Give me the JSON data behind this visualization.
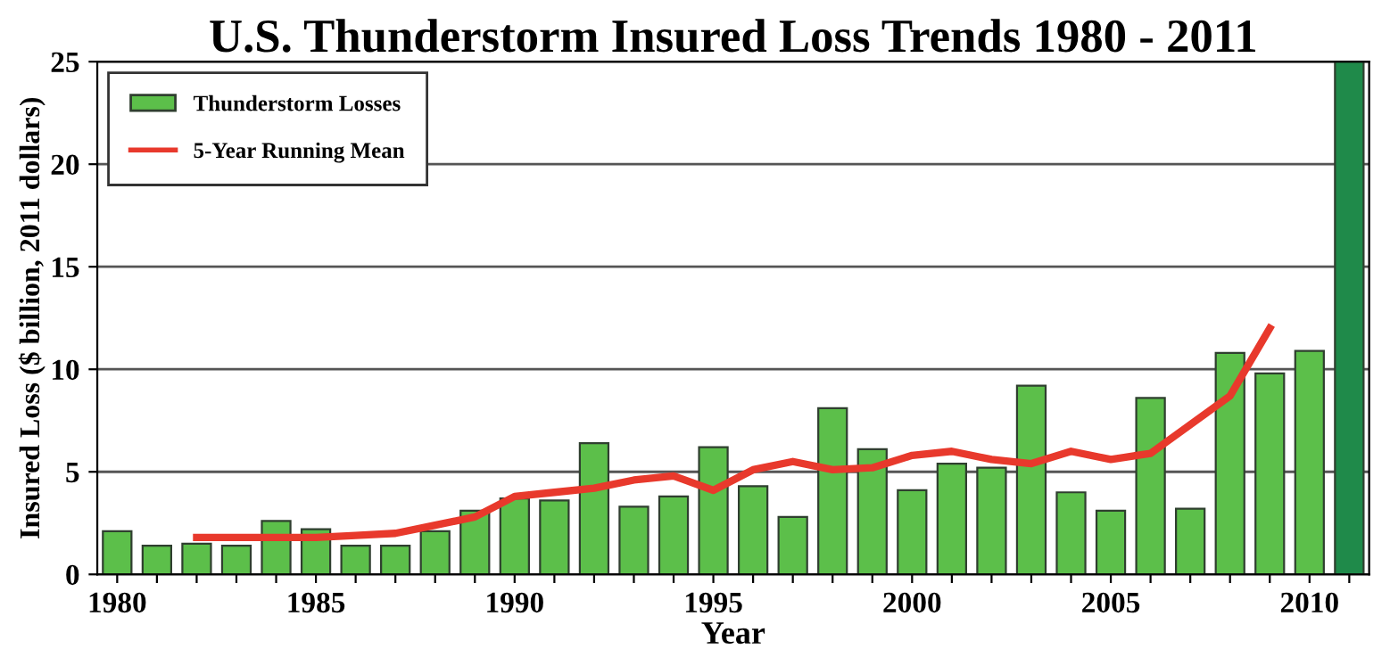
{
  "chart_data": {
    "type": "bar",
    "title": "U.S. Thunderstorm Insured Loss Trends 1980 - 2011",
    "xlabel": "Year",
    "ylabel": "Insured Loss ($ billion, 2011 dollars)",
    "x": [
      1980,
      1981,
      1982,
      1983,
      1984,
      1985,
      1986,
      1987,
      1988,
      1989,
      1990,
      1991,
      1992,
      1993,
      1994,
      1995,
      1996,
      1997,
      1998,
      1999,
      2000,
      2001,
      2002,
      2003,
      2004,
      2005,
      2006,
      2007,
      2008,
      2009,
      2010,
      2011
    ],
    "series": [
      {
        "name": "Thunderstorm Losses",
        "color": "#5cbf4a",
        "colors": [
          "#5cbf4a",
          "#5cbf4a",
          "#5cbf4a",
          "#5cbf4a",
          "#5cbf4a",
          "#5cbf4a",
          "#5cbf4a",
          "#5cbf4a",
          "#5cbf4a",
          "#5cbf4a",
          "#5cbf4a",
          "#5cbf4a",
          "#5cbf4a",
          "#5cbf4a",
          "#5cbf4a",
          "#5cbf4a",
          "#5cbf4a",
          "#5cbf4a",
          "#5cbf4a",
          "#5cbf4a",
          "#5cbf4a",
          "#5cbf4a",
          "#5cbf4a",
          "#5cbf4a",
          "#5cbf4a",
          "#5cbf4a",
          "#5cbf4a",
          "#5cbf4a",
          "#5cbf4a",
          "#5cbf4a",
          "#5cbf4a",
          "#1f8a4a"
        ],
        "values": [
          2.1,
          1.4,
          1.5,
          1.4,
          2.6,
          2.2,
          1.4,
          1.4,
          2.1,
          3.1,
          3.7,
          3.6,
          6.4,
          3.3,
          3.8,
          6.2,
          4.3,
          2.8,
          8.1,
          6.1,
          4.1,
          5.4,
          5.2,
          9.2,
          4.0,
          3.1,
          8.6,
          3.2,
          10.8,
          9.8,
          10.9,
          25
        ]
      },
      {
        "name": "5-Year Running Mean",
        "type": "line",
        "color": "#e8392c",
        "x": [
          1982,
          1983,
          1984,
          1985,
          1986,
          1987,
          1988,
          1989,
          1990,
          1991,
          1992,
          1993,
          1994,
          1995,
          1996,
          1997,
          1998,
          1999,
          2000,
          2001,
          2002,
          2003,
          2004,
          2005,
          2006,
          2007,
          2008,
          2009
        ],
        "values": [
          1.8,
          1.8,
          1.8,
          1.8,
          1.9,
          2.0,
          2.4,
          2.8,
          3.8,
          4.0,
          4.2,
          4.6,
          4.8,
          4.1,
          5.1,
          5.5,
          5.1,
          5.2,
          5.8,
          6.0,
          5.6,
          5.4,
          6.0,
          5.6,
          5.9,
          7.3,
          8.7,
          12.0
        ]
      }
    ],
    "xlim": [
      1979.5,
      2011.5
    ],
    "xticks": [
      1980,
      {
        "value": 1981,
        "label": null
      },
      {
        "value": 1982,
        "label": null
      },
      {
        "value": 1983,
        "label": null
      },
      {
        "value": 1984,
        "label": null
      },
      1985,
      {
        "value": 1986,
        "label": null
      },
      {
        "value": 1987,
        "label": null
      },
      {
        "value": 1988,
        "label": null
      },
      {
        "value": 1989,
        "label": null
      },
      1990,
      {
        "value": 1991,
        "label": null
      },
      {
        "value": 1992,
        "label": null
      },
      {
        "value": 1993,
        "label": null
      },
      {
        "value": 1994,
        "label": null
      },
      1995,
      {
        "value": 1996,
        "label": null
      },
      {
        "value": 1997,
        "label": null
      },
      {
        "value": 1998,
        "label": null
      },
      {
        "value": 1999,
        "label": null
      },
      2000,
      {
        "value": 2001,
        "label": null
      },
      {
        "value": 2002,
        "label": null
      },
      {
        "value": 2003,
        "label": null
      },
      {
        "value": 2004,
        "label": null
      },
      2005,
      {
        "value": 2006,
        "label": null
      },
      {
        "value": 2007,
        "label": null
      },
      {
        "value": 2008,
        "label": null
      },
      {
        "value": 2009,
        "label": null
      },
      2010,
      {
        "value": 2011,
        "label": null
      }
    ],
    "ylim": [
      0,
      25
    ],
    "yticks": [
      0,
      5,
      10,
      15,
      20,
      25
    ],
    "grid": "y",
    "legend": "top left"
  }
}
